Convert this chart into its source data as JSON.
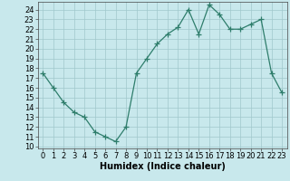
{
  "x": [
    0,
    1,
    2,
    3,
    4,
    5,
    6,
    7,
    8,
    9,
    10,
    11,
    12,
    13,
    14,
    15,
    16,
    17,
    18,
    19,
    20,
    21,
    22,
    23
  ],
  "y": [
    17.5,
    16.0,
    14.5,
    13.5,
    13.0,
    11.5,
    11.0,
    10.5,
    12.0,
    17.5,
    19.0,
    20.5,
    21.5,
    22.2,
    24.0,
    21.5,
    24.5,
    23.5,
    22.0,
    22.0,
    22.5,
    23.0,
    17.5,
    15.5
  ],
  "line_color": "#2e7d6b",
  "marker": "+",
  "marker_size": 4,
  "bg_color": "#c8e8ec",
  "grid_color": "#a0c8cc",
  "xlabel": "Humidex (Indice chaleur)",
  "xlim": [
    -0.5,
    23.5
  ],
  "ylim": [
    9.8,
    24.8
  ],
  "yticks": [
    10,
    11,
    12,
    13,
    14,
    15,
    16,
    17,
    18,
    19,
    20,
    21,
    22,
    23,
    24
  ],
  "xticks": [
    0,
    1,
    2,
    3,
    4,
    5,
    6,
    7,
    8,
    9,
    10,
    11,
    12,
    13,
    14,
    15,
    16,
    17,
    18,
    19,
    20,
    21,
    22,
    23
  ],
  "label_fontsize": 7,
  "tick_fontsize": 6
}
